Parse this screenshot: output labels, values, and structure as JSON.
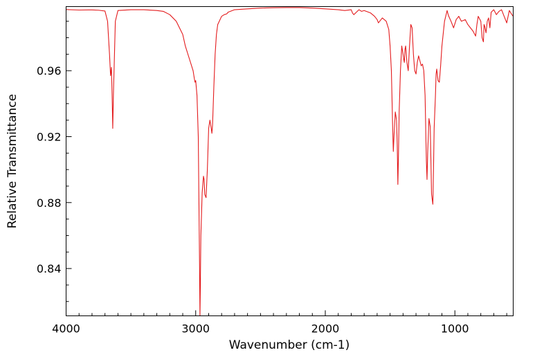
{
  "chart_data": {
    "type": "line",
    "title": "",
    "xlabel": "Wavenumber (cm-1)",
    "ylabel": "Relative Transmittance",
    "xlim": [
      4000,
      550
    ],
    "ylim": [
      0.8113,
      0.9989
    ],
    "x_inverted": true,
    "grid": false,
    "legend": "none",
    "line_color": "#e31a1c",
    "x_ticks": [
      {
        "value": 4000,
        "label": "4000"
      },
      {
        "value": 3000,
        "label": "3000"
      },
      {
        "value": 2000,
        "label": "2000"
      },
      {
        "value": 1000,
        "label": "1000"
      }
    ],
    "y_ticks": [
      {
        "value": 0.96,
        "label": "0.96"
      },
      {
        "value": 0.92,
        "label": "0.92"
      },
      {
        "value": 0.88,
        "label": "0.88"
      },
      {
        "value": 0.84,
        "label": "0.84"
      }
    ],
    "series": [
      {
        "x": [
          4000,
          3900,
          3800,
          3750,
          3700,
          3680,
          3665,
          3660,
          3657,
          3650,
          3645,
          3640,
          3635,
          3620,
          3600,
          3500,
          3400,
          3300,
          3250,
          3200,
          3150,
          3100,
          3080,
          3060,
          3040,
          3020,
          3010,
          3005,
          3000,
          2990,
          2980,
          2975,
          2970,
          2967,
          2964,
          2960,
          2950,
          2940,
          2935,
          2930,
          2920,
          2910,
          2900,
          2890,
          2880,
          2875,
          2870,
          2860,
          2850,
          2840,
          2830,
          2800,
          2780,
          2760,
          2750,
          2700,
          2600,
          2500,
          2400,
          2300,
          2200,
          2100,
          2000,
          1900,
          1850,
          1800,
          1790,
          1780,
          1760,
          1740,
          1720,
          1700,
          1650,
          1620,
          1600,
          1590,
          1560,
          1530,
          1510,
          1500,
          1490,
          1480,
          1475,
          1470,
          1460,
          1450,
          1445,
          1440,
          1435,
          1430,
          1420,
          1410,
          1400,
          1395,
          1390,
          1385,
          1380,
          1370,
          1360,
          1350,
          1340,
          1330,
          1320,
          1310,
          1300,
          1290,
          1280,
          1270,
          1260,
          1250,
          1240,
          1230,
          1220,
          1215,
          1210,
          1200,
          1190,
          1180,
          1170,
          1165,
          1160,
          1150,
          1145,
          1140,
          1130,
          1120,
          1110,
          1100,
          1080,
          1060,
          1050,
          1030,
          1010,
          990,
          970,
          950,
          920,
          900,
          880,
          860,
          840,
          830,
          820,
          800,
          790,
          780,
          775,
          770,
          760,
          750,
          740,
          730,
          720,
          700,
          680,
          660,
          640,
          620,
          600,
          580,
          560,
          550
        ],
        "y": [
          0.9971,
          0.9968,
          0.9969,
          0.9967,
          0.9962,
          0.99,
          0.97,
          0.962,
          0.957,
          0.962,
          0.945,
          0.925,
          0.945,
          0.99,
          0.9965,
          0.997,
          0.997,
          0.9965,
          0.996,
          0.994,
          0.99,
          0.982,
          0.975,
          0.97,
          0.965,
          0.96,
          0.955,
          0.953,
          0.954,
          0.945,
          0.92,
          0.88,
          0.84,
          0.8113,
          0.83,
          0.86,
          0.886,
          0.896,
          0.894,
          0.885,
          0.883,
          0.9,
          0.925,
          0.93,
          0.925,
          0.922,
          0.927,
          0.95,
          0.97,
          0.982,
          0.988,
          0.993,
          0.994,
          0.9945,
          0.9955,
          0.997,
          0.9975,
          0.998,
          0.9982,
          0.9983,
          0.9983,
          0.998,
          0.9975,
          0.997,
          0.9965,
          0.997,
          0.995,
          0.994,
          0.9955,
          0.997,
          0.996,
          0.9965,
          0.995,
          0.993,
          0.991,
          0.989,
          0.992,
          0.99,
          0.985,
          0.975,
          0.96,
          0.925,
          0.911,
          0.92,
          0.935,
          0.93,
          0.915,
          0.891,
          0.91,
          0.935,
          0.96,
          0.975,
          0.97,
          0.967,
          0.965,
          0.973,
          0.975,
          0.965,
          0.96,
          0.975,
          0.988,
          0.986,
          0.97,
          0.96,
          0.958,
          0.965,
          0.969,
          0.966,
          0.963,
          0.964,
          0.96,
          0.945,
          0.905,
          0.894,
          0.91,
          0.931,
          0.926,
          0.885,
          0.879,
          0.9,
          0.925,
          0.945,
          0.958,
          0.961,
          0.954,
          0.953,
          0.963,
          0.975,
          0.99,
          0.9965,
          0.9935,
          0.99,
          0.986,
          0.991,
          0.993,
          0.99,
          0.991,
          0.988,
          0.986,
          0.984,
          0.981,
          0.988,
          0.993,
          0.99,
          0.98,
          0.9775,
          0.988,
          0.987,
          0.983,
          0.99,
          0.992,
          0.986,
          0.9955,
          0.997,
          0.994,
          0.996,
          0.997,
          0.993,
          0.989,
          0.9965,
          0.994,
          0.993
        ]
      }
    ]
  }
}
